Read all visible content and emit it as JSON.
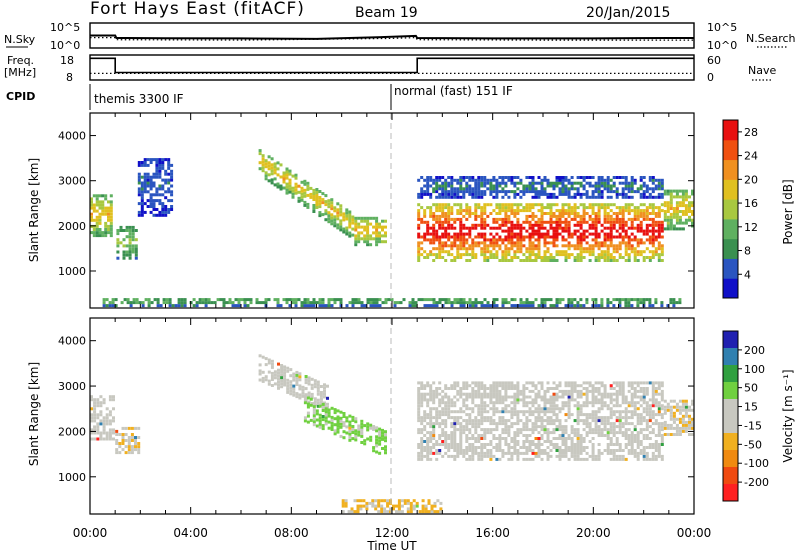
{
  "header": {
    "station": "Fort Hays East (fitACF)",
    "beam": "Beam 19",
    "date": "20/Jan/2015"
  },
  "colors": {
    "power_scale": [
      "#1010c8",
      "#2a55c0",
      "#3a9050",
      "#5fb060",
      "#a8c840",
      "#e0c020",
      "#f09020",
      "#f05010",
      "#e81010"
    ],
    "velocity_scale": [
      "#ff2020",
      "#f04a10",
      "#f08a10",
      "#f0b020",
      "#c8c8c0",
      "#c8c8c0",
      "#70d040",
      "#30a040",
      "#3080b0",
      "#2020b0"
    ],
    "noise_line": "#000000",
    "divider_line": "#999999"
  },
  "chart_data": [
    {
      "type": "line",
      "panel": "noise",
      "left_label": "N.Sky",
      "right_label": "N.Search",
      "left_ticks": [
        "10^5",
        "10^0"
      ],
      "right_ticks": [
        "10^5",
        "10^0"
      ],
      "scale": "log",
      "ylim_log10": [
        0,
        5
      ],
      "series": [
        {
          "name": "N.Sky",
          "style": "solid",
          "x_hours": [
            0,
            1,
            1.05,
            3,
            6,
            9,
            12,
            12.95,
            13,
            16,
            20,
            23,
            24
          ],
          "y_log10": [
            2.5,
            2.5,
            1.9,
            1.85,
            1.8,
            1.7,
            2.2,
            2.4,
            1.9,
            1.8,
            1.8,
            1.9,
            1.9
          ]
        },
        {
          "name": "N.Search",
          "style": "dotted",
          "x_hours": [
            0,
            1,
            1.05,
            6,
            12,
            12.95,
            13,
            18,
            24
          ],
          "y_log10": [
            2.0,
            2.0,
            1.5,
            1.4,
            1.8,
            2.0,
            1.5,
            1.4,
            1.4
          ]
        }
      ]
    },
    {
      "type": "line",
      "panel": "frequency",
      "left_label_lines": [
        "Freq.",
        "[MHz]"
      ],
      "right_label": "Nave",
      "left_ticks": [
        "18",
        "8"
      ],
      "right_ticks": [
        "60",
        "0"
      ],
      "ylim": [
        8,
        18
      ],
      "series": [
        {
          "name": "Freq.",
          "style": "solid",
          "x_hours": [
            0,
            1,
            1,
            13,
            13,
            24
          ],
          "y": [
            17.4,
            17.4,
            10.6,
            10.6,
            17.4,
            17.4
          ]
        },
        {
          "name": "Nave",
          "style": "dotted",
          "x_hours": [
            0,
            24
          ],
          "y": [
            10.2,
            10.2
          ]
        }
      ]
    },
    {
      "type": "table",
      "panel": "cpid",
      "label": "CPID",
      "segments": [
        {
          "start_hours": 0,
          "text": "themis 3300 IF"
        },
        {
          "start_hours": 12.0,
          "text": "normal (fast) 151 IF"
        }
      ]
    },
    {
      "type": "heatmap",
      "panel": "power",
      "ylabel": "Slant Range [km]",
      "xlim_hours": [
        0,
        24
      ],
      "ylim_km": [
        180,
        4500
      ],
      "yticks": [
        1000,
        2000,
        3000,
        4000
      ],
      "colorbar_label": "Power [dB]",
      "colorbar_ticks": [
        "4",
        "8",
        "12",
        "16",
        "20",
        "24",
        "28"
      ],
      "colorbar_range": [
        0,
        30
      ],
      "features": [
        {
          "x_hours": [
            0,
            0.9
          ],
          "range_km": [
            1750,
            2700
          ],
          "level": 18
        },
        {
          "x_hours": [
            1.05,
            1.9
          ],
          "range_km": [
            1250,
            2000
          ],
          "level": 12
        },
        {
          "x_hours": [
            1.9,
            3.3
          ],
          "range_km": [
            2200,
            3500
          ],
          "level": 5
        },
        {
          "x_hours": [
            6.7,
            10.5
          ],
          "start_km": 3400,
          "end_km": 1950,
          "level": 17
        },
        {
          "x_hours": [
            10.5,
            11.8
          ],
          "range_km": [
            1550,
            2200
          ],
          "level": 18
        },
        {
          "x_hours": [
            13.0,
            22.8
          ],
          "range_km": [
            1200,
            2500
          ],
          "level": 26
        },
        {
          "x_hours": [
            13.0,
            22.8
          ],
          "range_km": [
            2600,
            3100
          ],
          "level": 6
        },
        {
          "x_hours": [
            22.8,
            24
          ],
          "range_km": [
            1900,
            2800
          ],
          "level": 17
        },
        {
          "x_hours": [
            0.5,
            23.5
          ],
          "range_km": [
            200,
            400
          ],
          "level": 10
        }
      ]
    },
    {
      "type": "heatmap",
      "panel": "velocity",
      "ylabel": "Slant Range [km]",
      "xlim_hours": [
        0,
        24
      ],
      "ylim_km": [
        180,
        4500
      ],
      "yticks": [
        1000,
        2000,
        3000,
        4000
      ],
      "xlabel": "Time UT",
      "xticks": [
        "00:00",
        "04:00",
        "08:00",
        "12:00",
        "16:00",
        "20:00",
        "00:00"
      ],
      "colorbar_label": "Velocity [m s⁻¹]",
      "colorbar_ticks": [
        "-200",
        "-100",
        "-50",
        "-15",
        "15",
        "50",
        "100",
        "200"
      ],
      "colorbar_range": [
        -250,
        250
      ],
      "features": [
        {
          "x_hours": [
            0,
            1.0
          ],
          "range_km": [
            1800,
            2800
          ],
          "v": 0
        },
        {
          "x_hours": [
            1.0,
            2.0
          ],
          "range_km": [
            1500,
            2100
          ],
          "v": -40
        },
        {
          "x_hours": [
            6.7,
            9.5
          ],
          "start_km": 3400,
          "end_km": 2700,
          "v": 0
        },
        {
          "x_hours": [
            8.5,
            11.8
          ],
          "start_km": 2500,
          "end_km": 1700,
          "v": 60
        },
        {
          "x_hours": [
            13.0,
            22.8
          ],
          "range_km": [
            1350,
            2600
          ],
          "v": 0
        },
        {
          "x_hours": [
            13.0,
            22.8
          ],
          "range_km": [
            2600,
            3100
          ],
          "v": 0
        },
        {
          "x_hours": [
            22.8,
            24
          ],
          "range_km": [
            1900,
            2700
          ],
          "v": -40
        },
        {
          "x_hours": [
            10.0,
            14.0
          ],
          "range_km": [
            200,
            500
          ],
          "v": -60
        }
      ]
    }
  ]
}
